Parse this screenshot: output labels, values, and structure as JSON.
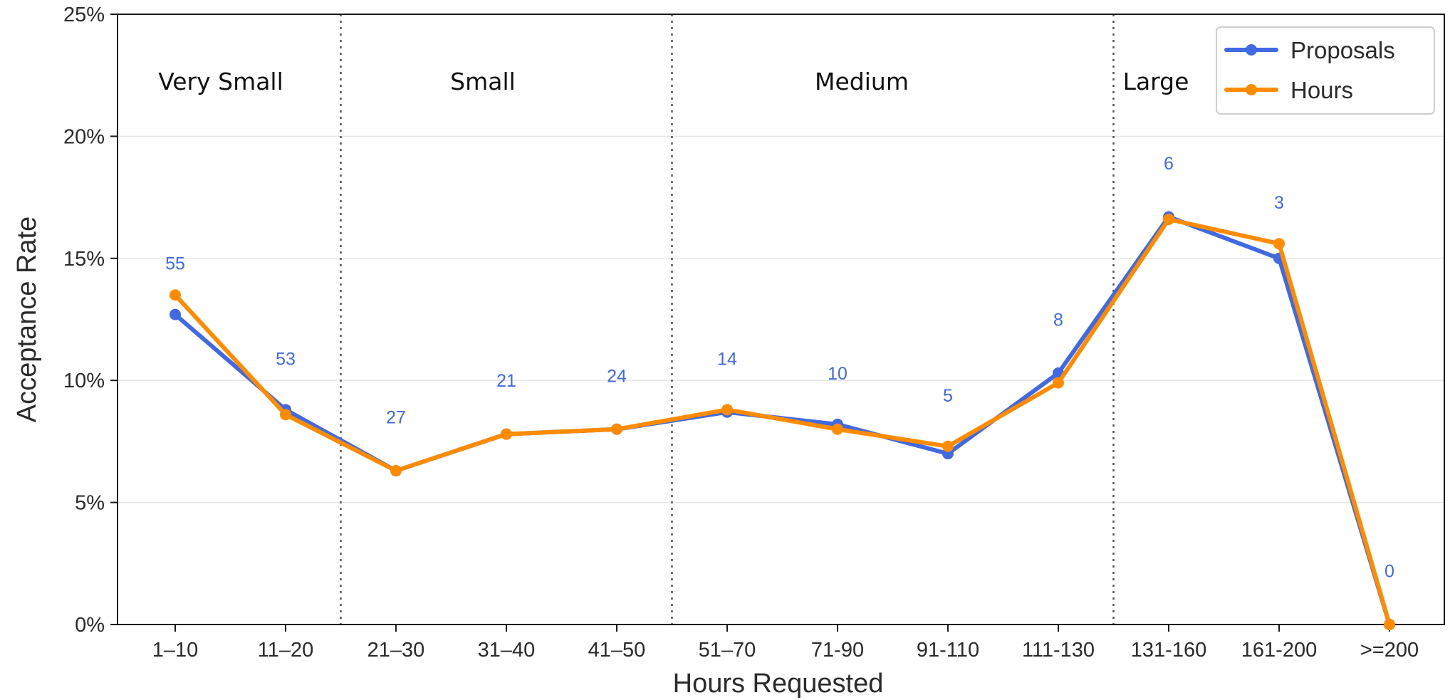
{
  "chart_data": {
    "type": "line",
    "xlabel": "Hours Requested",
    "ylabel": "Acceptance Rate",
    "categories": [
      "1–10",
      "11–20",
      "21–30",
      "31–40",
      "41–50",
      "51–70",
      "71-90",
      "91-110",
      "111-130",
      "131-160",
      "161-200",
      ">=200"
    ],
    "ylim": [
      0,
      25
    ],
    "yticks": [
      0,
      5,
      10,
      15,
      20,
      25
    ],
    "ytick_labels": [
      "0%",
      "5%",
      "10%",
      "15%",
      "20%",
      "25%"
    ],
    "grid": "horizontal, faint",
    "legend_position": "top-right",
    "series": [
      {
        "name": "Proposals",
        "color": "#4169E1",
        "values": [
          12.7,
          8.8,
          6.3,
          7.8,
          8.0,
          8.7,
          8.2,
          7.0,
          10.3,
          16.7,
          15.0,
          0.0
        ]
      },
      {
        "name": "Hours",
        "color": "#FF8C00",
        "values": [
          13.5,
          8.6,
          6.3,
          7.8,
          8.0,
          8.8,
          8.0,
          7.3,
          9.9,
          16.6,
          15.6,
          0.0
        ]
      }
    ],
    "count_annotations": {
      "color": "#4169E1",
      "labels": [
        "55",
        "53",
        "27",
        "21",
        "24",
        "14",
        "10",
        "5",
        "8",
        "6",
        "3",
        "0"
      ],
      "y_values": [
        14.8,
        10.9,
        8.5,
        10.0,
        10.2,
        10.9,
        10.3,
        9.4,
        12.5,
        18.9,
        17.3,
        2.2
      ]
    },
    "regions": {
      "boundaries_after_category_index": [
        1,
        4,
        8
      ],
      "labels": [
        "Very Small",
        "Small",
        "Medium",
        "Large"
      ]
    }
  }
}
